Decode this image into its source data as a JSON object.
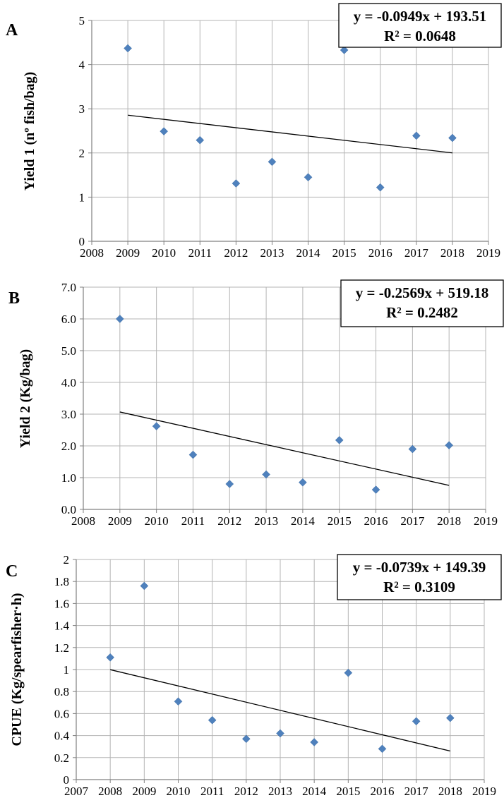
{
  "chart_data": [
    {
      "type": "scatter",
      "panel_label": "A",
      "ylabel": "Yield 1 (nº fish/bag)",
      "xlim": [
        2008,
        2019
      ],
      "ylim": [
        0,
        5
      ],
      "xticks": [
        "2008",
        "2009",
        "2010",
        "2011",
        "2012",
        "2013",
        "2014",
        "2015",
        "2016",
        "2017",
        "2018",
        "2019"
      ],
      "yticks": [
        "0",
        "1",
        "2",
        "3",
        "4",
        "5"
      ],
      "grid": true,
      "marker_color": "#4f81bd",
      "series": [
        {
          "x": [
            2009,
            2010,
            2011,
            2012,
            2013,
            2014,
            2015,
            2016,
            2017,
            2018
          ],
          "y": [
            4.37,
            2.49,
            2.29,
            1.31,
            1.8,
            1.45,
            4.33,
            1.22,
            2.39,
            2.34
          ]
        }
      ],
      "trendline": {
        "slope": -0.0949,
        "intercept": 193.51,
        "x_range": [
          2009,
          2018
        ]
      },
      "equation": "y = -0.0949x + 193.51",
      "r_squared": "R² = 0.0648"
    },
    {
      "type": "scatter",
      "panel_label": "B",
      "ylabel": "Yield 2 (Kg/bag)",
      "xlim": [
        2008,
        2019
      ],
      "ylim": [
        0,
        7
      ],
      "xticks": [
        "2008",
        "2009",
        "2010",
        "2011",
        "2012",
        "2013",
        "2014",
        "2015",
        "2016",
        "2017",
        "2018",
        "2019"
      ],
      "yticks": [
        "0.0",
        "1.0",
        "2.0",
        "3.0",
        "4.0",
        "5.0",
        "6.0",
        "7.0"
      ],
      "grid": true,
      "marker_color": "#4f81bd",
      "series": [
        {
          "x": [
            2009,
            2010,
            2011,
            2012,
            2013,
            2014,
            2015,
            2016,
            2017,
            2018
          ],
          "y": [
            6.0,
            2.62,
            1.72,
            0.8,
            1.1,
            0.85,
            2.18,
            0.62,
            1.9,
            2.02
          ]
        }
      ],
      "trendline": {
        "slope": -0.2569,
        "intercept": 519.18,
        "x_range": [
          2009,
          2018
        ]
      },
      "equation": "y = -0.2569x + 519.18",
      "r_squared": "R² = 0.2482"
    },
    {
      "type": "scatter",
      "panel_label": "C",
      "ylabel": "CPUE (Kg/spearfisher·h)",
      "xlim": [
        2007,
        2019
      ],
      "ylim": [
        0,
        2
      ],
      "xticks": [
        "2007",
        "2008",
        "2009",
        "2010",
        "2011",
        "2012",
        "2013",
        "2014",
        "2015",
        "2016",
        "2017",
        "2018",
        "2019"
      ],
      "yticks": [
        "0",
        "0.2",
        "0.4",
        "0.6",
        "0.8",
        "1",
        "1.2",
        "1.4",
        "1.6",
        "1.8",
        "2"
      ],
      "grid": true,
      "marker_color": "#4f81bd",
      "series": [
        {
          "x": [
            2008,
            2009,
            2010,
            2011,
            2012,
            2013,
            2014,
            2015,
            2016,
            2017,
            2018
          ],
          "y": [
            1.11,
            1.76,
            0.71,
            0.54,
            0.37,
            0.42,
            0.34,
            0.97,
            0.28,
            0.53,
            0.56
          ]
        }
      ],
      "trendline": {
        "slope": -0.0739,
        "intercept": 149.39,
        "x_range": [
          2008,
          2018
        ]
      },
      "equation": "y = -0.0739x + 149.39",
      "r_squared": "R² = 0.3109"
    }
  ]
}
